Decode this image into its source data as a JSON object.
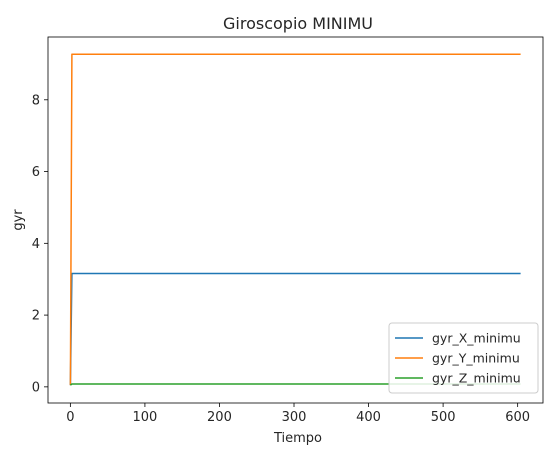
{
  "chart_data": {
    "type": "line",
    "title": "Giroscopio MINIMU",
    "xlabel": "Tiempo",
    "ylabel": "gyr",
    "xlim": [
      -30,
      634
    ],
    "ylim": [
      -0.45,
      9.75
    ],
    "xticks": [
      0,
      100,
      200,
      300,
      400,
      500,
      600
    ],
    "yticks": [
      0,
      2,
      4,
      6,
      8
    ],
    "grid": false,
    "legend_position": "lower right",
    "series": [
      {
        "name": "gyr_X_minimu",
        "color": "#1f77b4",
        "x": [
          0,
          2,
          604
        ],
        "y": [
          0.05,
          3.16,
          3.16
        ]
      },
      {
        "name": "gyr_Y_minimu",
        "color": "#ff7f0e",
        "x": [
          0,
          2,
          604
        ],
        "y": [
          0.05,
          9.27,
          9.27
        ]
      },
      {
        "name": "gyr_Z_minimu",
        "color": "#2ca02c",
        "x": [
          0,
          2,
          604
        ],
        "y": [
          0.05,
          0.08,
          0.08
        ]
      }
    ]
  }
}
